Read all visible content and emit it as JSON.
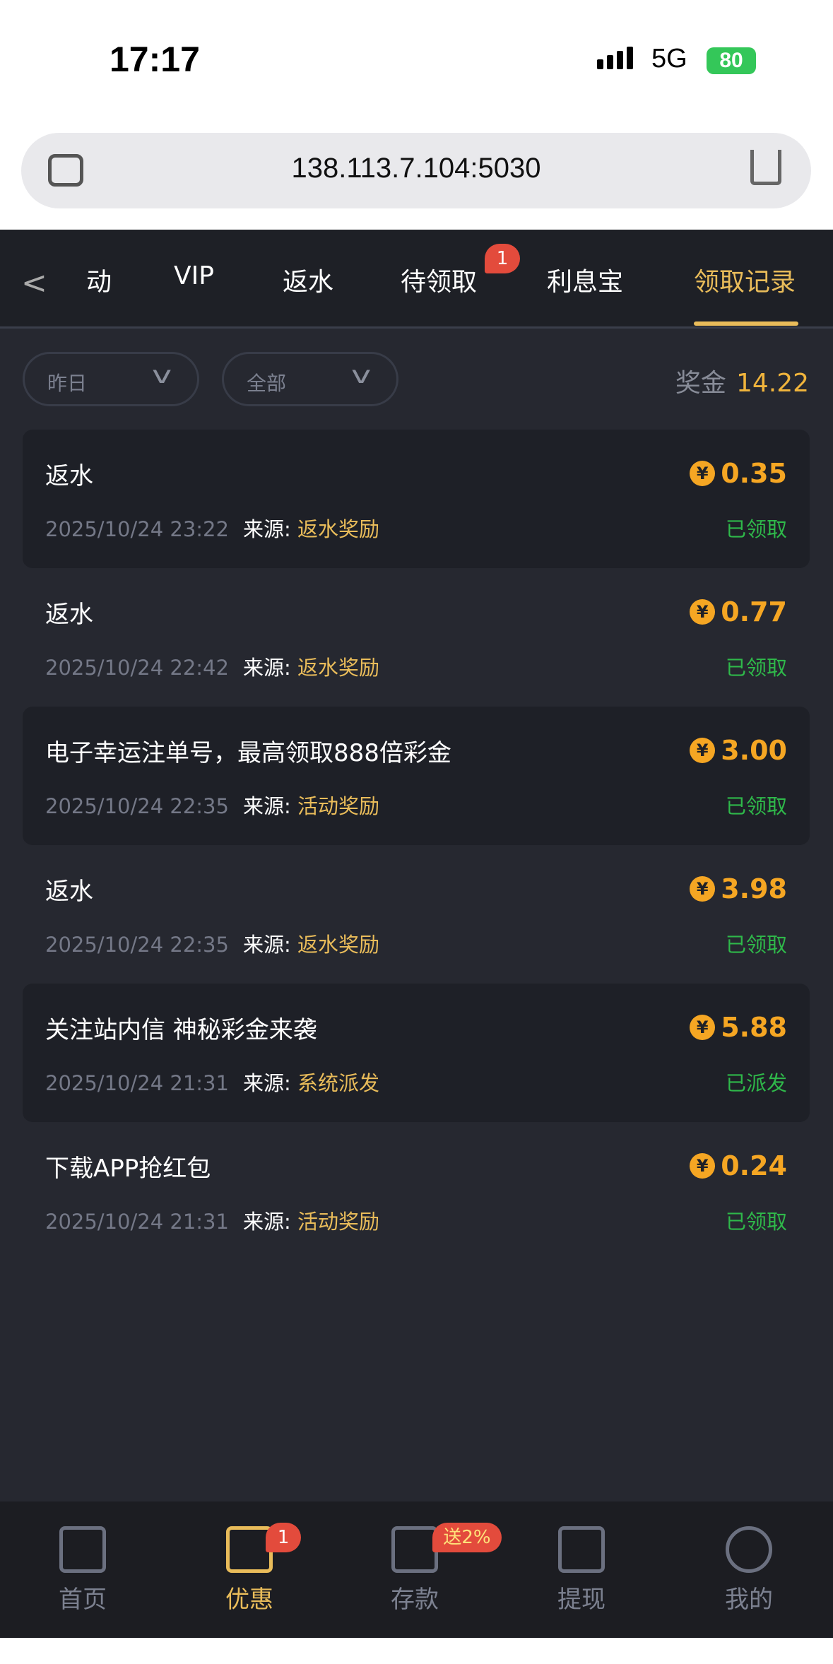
{
  "status": {
    "time": "17:17",
    "network": "5G",
    "battery": "80"
  },
  "browser": {
    "url": "138.113.7.104:5030"
  },
  "tabs": [
    {
      "label": "动"
    },
    {
      "label": "VIP"
    },
    {
      "label": "返水"
    },
    {
      "label": "待领取",
      "badge": "1"
    },
    {
      "label": "利息宝"
    },
    {
      "label": "领取记录",
      "active": true
    }
  ],
  "filters": {
    "date": "昨日",
    "type": "全部"
  },
  "total": {
    "label": "奖金",
    "value": "14.22"
  },
  "records": [
    {
      "title": "返水",
      "amount": "0.35",
      "time": "2025/10/24 23:22",
      "source_label": "来源:",
      "source": "返水奖励",
      "status": "已领取"
    },
    {
      "title": "返水",
      "amount": "0.77",
      "time": "2025/10/24 22:42",
      "source_label": "来源:",
      "source": "返水奖励",
      "status": "已领取"
    },
    {
      "title": "电子幸运注单号，最高领取888倍彩金",
      "amount": "3.00",
      "time": "2025/10/24 22:35",
      "source_label": "来源:",
      "source": "活动奖励",
      "status": "已领取"
    },
    {
      "title": "返水",
      "amount": "3.98",
      "time": "2025/10/24 22:35",
      "source_label": "来源:",
      "source": "返水奖励",
      "status": "已领取"
    },
    {
      "title": "关注站内信 神秘彩金来袭",
      "amount": "5.88",
      "time": "2025/10/24 21:31",
      "source_label": "来源:",
      "source": "系统派发",
      "status": "已派发"
    },
    {
      "title": "下载APP抢红包",
      "amount": "0.24",
      "time": "2025/10/24 21:31",
      "source_label": "来源:",
      "source": "活动奖励",
      "status": "已领取"
    }
  ],
  "coin_symbol": "¥",
  "bottom_nav": [
    {
      "label": "首页"
    },
    {
      "label": "优惠",
      "badge": "1",
      "active": true
    },
    {
      "label": "存款",
      "badge": "送2%"
    },
    {
      "label": "提现"
    },
    {
      "label": "我的"
    }
  ]
}
